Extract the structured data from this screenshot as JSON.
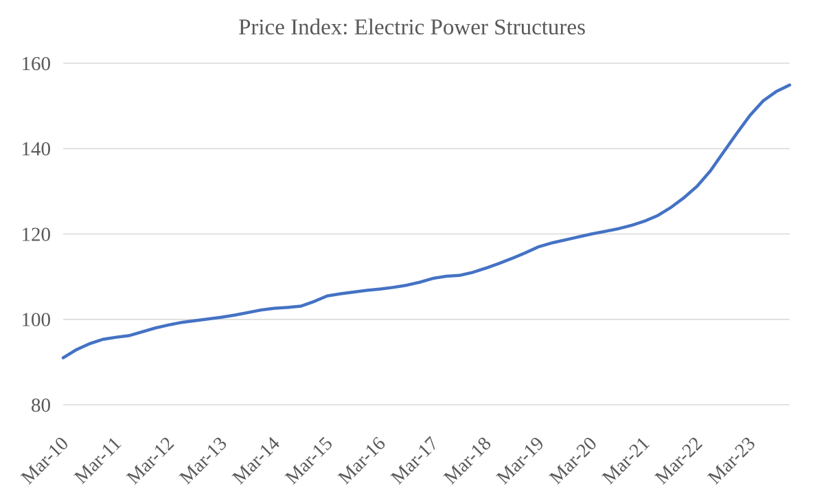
{
  "chart_data": {
    "type": "line",
    "title": "Price Index: Electric Power Structures",
    "series_name": "Price Index: Electric Power Structures",
    "categories": [
      "Mar-10",
      "Jun-10",
      "Sep-10",
      "Dec-10",
      "Mar-11",
      "Jun-11",
      "Sep-11",
      "Dec-11",
      "Mar-12",
      "Jun-12",
      "Sep-12",
      "Dec-12",
      "Mar-13",
      "Jun-13",
      "Sep-13",
      "Dec-13",
      "Mar-14",
      "Jun-14",
      "Sep-14",
      "Dec-14",
      "Mar-15",
      "Jun-15",
      "Sep-15",
      "Dec-15",
      "Mar-16",
      "Jun-16",
      "Sep-16",
      "Dec-16",
      "Mar-17",
      "Jun-17",
      "Sep-17",
      "Dec-17",
      "Mar-18",
      "Jun-18",
      "Sep-18",
      "Dec-18",
      "Mar-19",
      "Jun-19",
      "Sep-19",
      "Dec-19",
      "Mar-20",
      "Jun-20",
      "Sep-20",
      "Dec-20",
      "Mar-21",
      "Jun-21",
      "Sep-21",
      "Dec-21",
      "Mar-22",
      "Jun-22",
      "Sep-22",
      "Dec-22",
      "Mar-23",
      "Jun-23",
      "Sep-23",
      "Dec-23"
    ],
    "values": [
      91.0,
      92.9,
      94.3,
      95.3,
      95.8,
      96.2,
      97.1,
      98.0,
      98.7,
      99.3,
      99.7,
      100.1,
      100.5,
      101.0,
      101.6,
      102.2,
      102.6,
      102.8,
      103.1,
      104.2,
      105.5,
      106.0,
      106.4,
      106.8,
      107.1,
      107.5,
      108.0,
      108.7,
      109.6,
      110.1,
      110.3,
      111.0,
      112.0,
      113.1,
      114.3,
      115.6,
      117.0,
      117.9,
      118.6,
      119.3,
      120.0,
      120.6,
      121.2,
      122.0,
      123.0,
      124.3,
      126.2,
      128.5,
      131.2,
      134.8,
      139.2,
      143.6,
      147.8,
      151.2,
      153.4,
      154.9
    ],
    "ylim": [
      80,
      160
    ],
    "yticks": [
      80,
      100,
      120,
      140,
      160
    ],
    "xtick_every": 4,
    "xtick_labels": [
      "Mar-10",
      "Mar-11",
      "Mar-12",
      "Mar-13",
      "Mar-14",
      "Mar-15",
      "Mar-16",
      "Mar-17",
      "Mar-18",
      "Mar-19",
      "Mar-20",
      "Mar-21",
      "Mar-22",
      "Mar-23"
    ],
    "xtick_rotation_deg": 45,
    "grid": "horizontal",
    "legend": "none",
    "colors": {
      "line": "#4472C4",
      "gridline": "#D9D9D9",
      "text": "#595959",
      "background": "#FFFFFF"
    }
  }
}
